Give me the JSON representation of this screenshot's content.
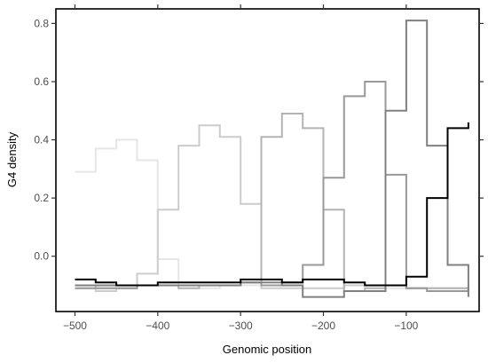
{
  "chart_data": {
    "type": "line",
    "step": true,
    "xlabel": "Genomic position",
    "ylabel": "G4 density",
    "xlim": [
      -523,
      -12
    ],
    "ylim": [
      -0.19,
      0.85
    ],
    "x_ticks": [
      -500,
      -400,
      -300,
      -200,
      -100
    ],
    "x_tick_labels": [
      "−500",
      "−400",
      "−300",
      "−200",
      "−100"
    ],
    "y_ticks": [
      0.0,
      0.2,
      0.4,
      0.6,
      0.8
    ],
    "y_tick_labels": [
      "0.0",
      "0.2",
      "0.4",
      "0.6",
      "0.8"
    ],
    "grid": false,
    "x": [
      -500,
      -475,
      -450,
      -425,
      -400,
      -375,
      -350,
      -325,
      -300,
      -275,
      -250,
      -225,
      -200,
      -175,
      -150,
      -125,
      -100,
      -75,
      -50,
      -25
    ],
    "series": [
      {
        "color": "#e6e6e6",
        "values": [
          0.29,
          0.37,
          0.4,
          0.33,
          -0.01,
          -0.11,
          -0.11,
          -0.1,
          -0.1,
          -0.1,
          -0.1,
          -0.11,
          -0.11,
          -0.1,
          -0.1,
          -0.11,
          -0.11,
          -0.12,
          -0.12,
          -0.11
        ]
      },
      {
        "color": "#cccccc",
        "values": [
          -0.11,
          -0.12,
          -0.11,
          -0.06,
          0.16,
          0.38,
          0.45,
          0.41,
          0.18,
          -0.11,
          -0.11,
          -0.11,
          -0.11,
          -0.1,
          -0.1,
          -0.1,
          -0.11,
          -0.11,
          -0.11,
          -0.1
        ]
      },
      {
        "color": "#b3b3b3",
        "values": [
          -0.1,
          -0.11,
          -0.11,
          -0.1,
          -0.1,
          -0.11,
          -0.1,
          -0.1,
          -0.09,
          0.41,
          0.49,
          0.44,
          0.16,
          -0.12,
          -0.11,
          -0.1,
          -0.11,
          -0.11,
          -0.11,
          -0.11
        ]
      },
      {
        "color": "#999999",
        "values": [
          -0.11,
          -0.11,
          -0.11,
          -0.1,
          -0.1,
          -0.1,
          -0.1,
          -0.1,
          -0.09,
          -0.1,
          -0.09,
          -0.03,
          0.27,
          0.55,
          0.6,
          0.28,
          -0.11,
          -0.12,
          -0.12,
          -0.11
        ]
      },
      {
        "color": "#808080",
        "values": [
          -0.1,
          -0.1,
          -0.1,
          -0.1,
          -0.1,
          -0.1,
          -0.1,
          -0.1,
          -0.09,
          -0.09,
          -0.1,
          -0.14,
          -0.14,
          -0.12,
          -0.12,
          0.5,
          0.81,
          0.38,
          -0.03,
          -0.14
        ]
      },
      {
        "color": "#000000",
        "values": [
          -0.08,
          -0.09,
          -0.1,
          -0.1,
          -0.09,
          -0.09,
          -0.09,
          -0.09,
          -0.08,
          -0.08,
          -0.09,
          -0.08,
          -0.08,
          -0.09,
          -0.1,
          -0.1,
          -0.07,
          0.2,
          0.44,
          0.46
        ]
      }
    ]
  }
}
